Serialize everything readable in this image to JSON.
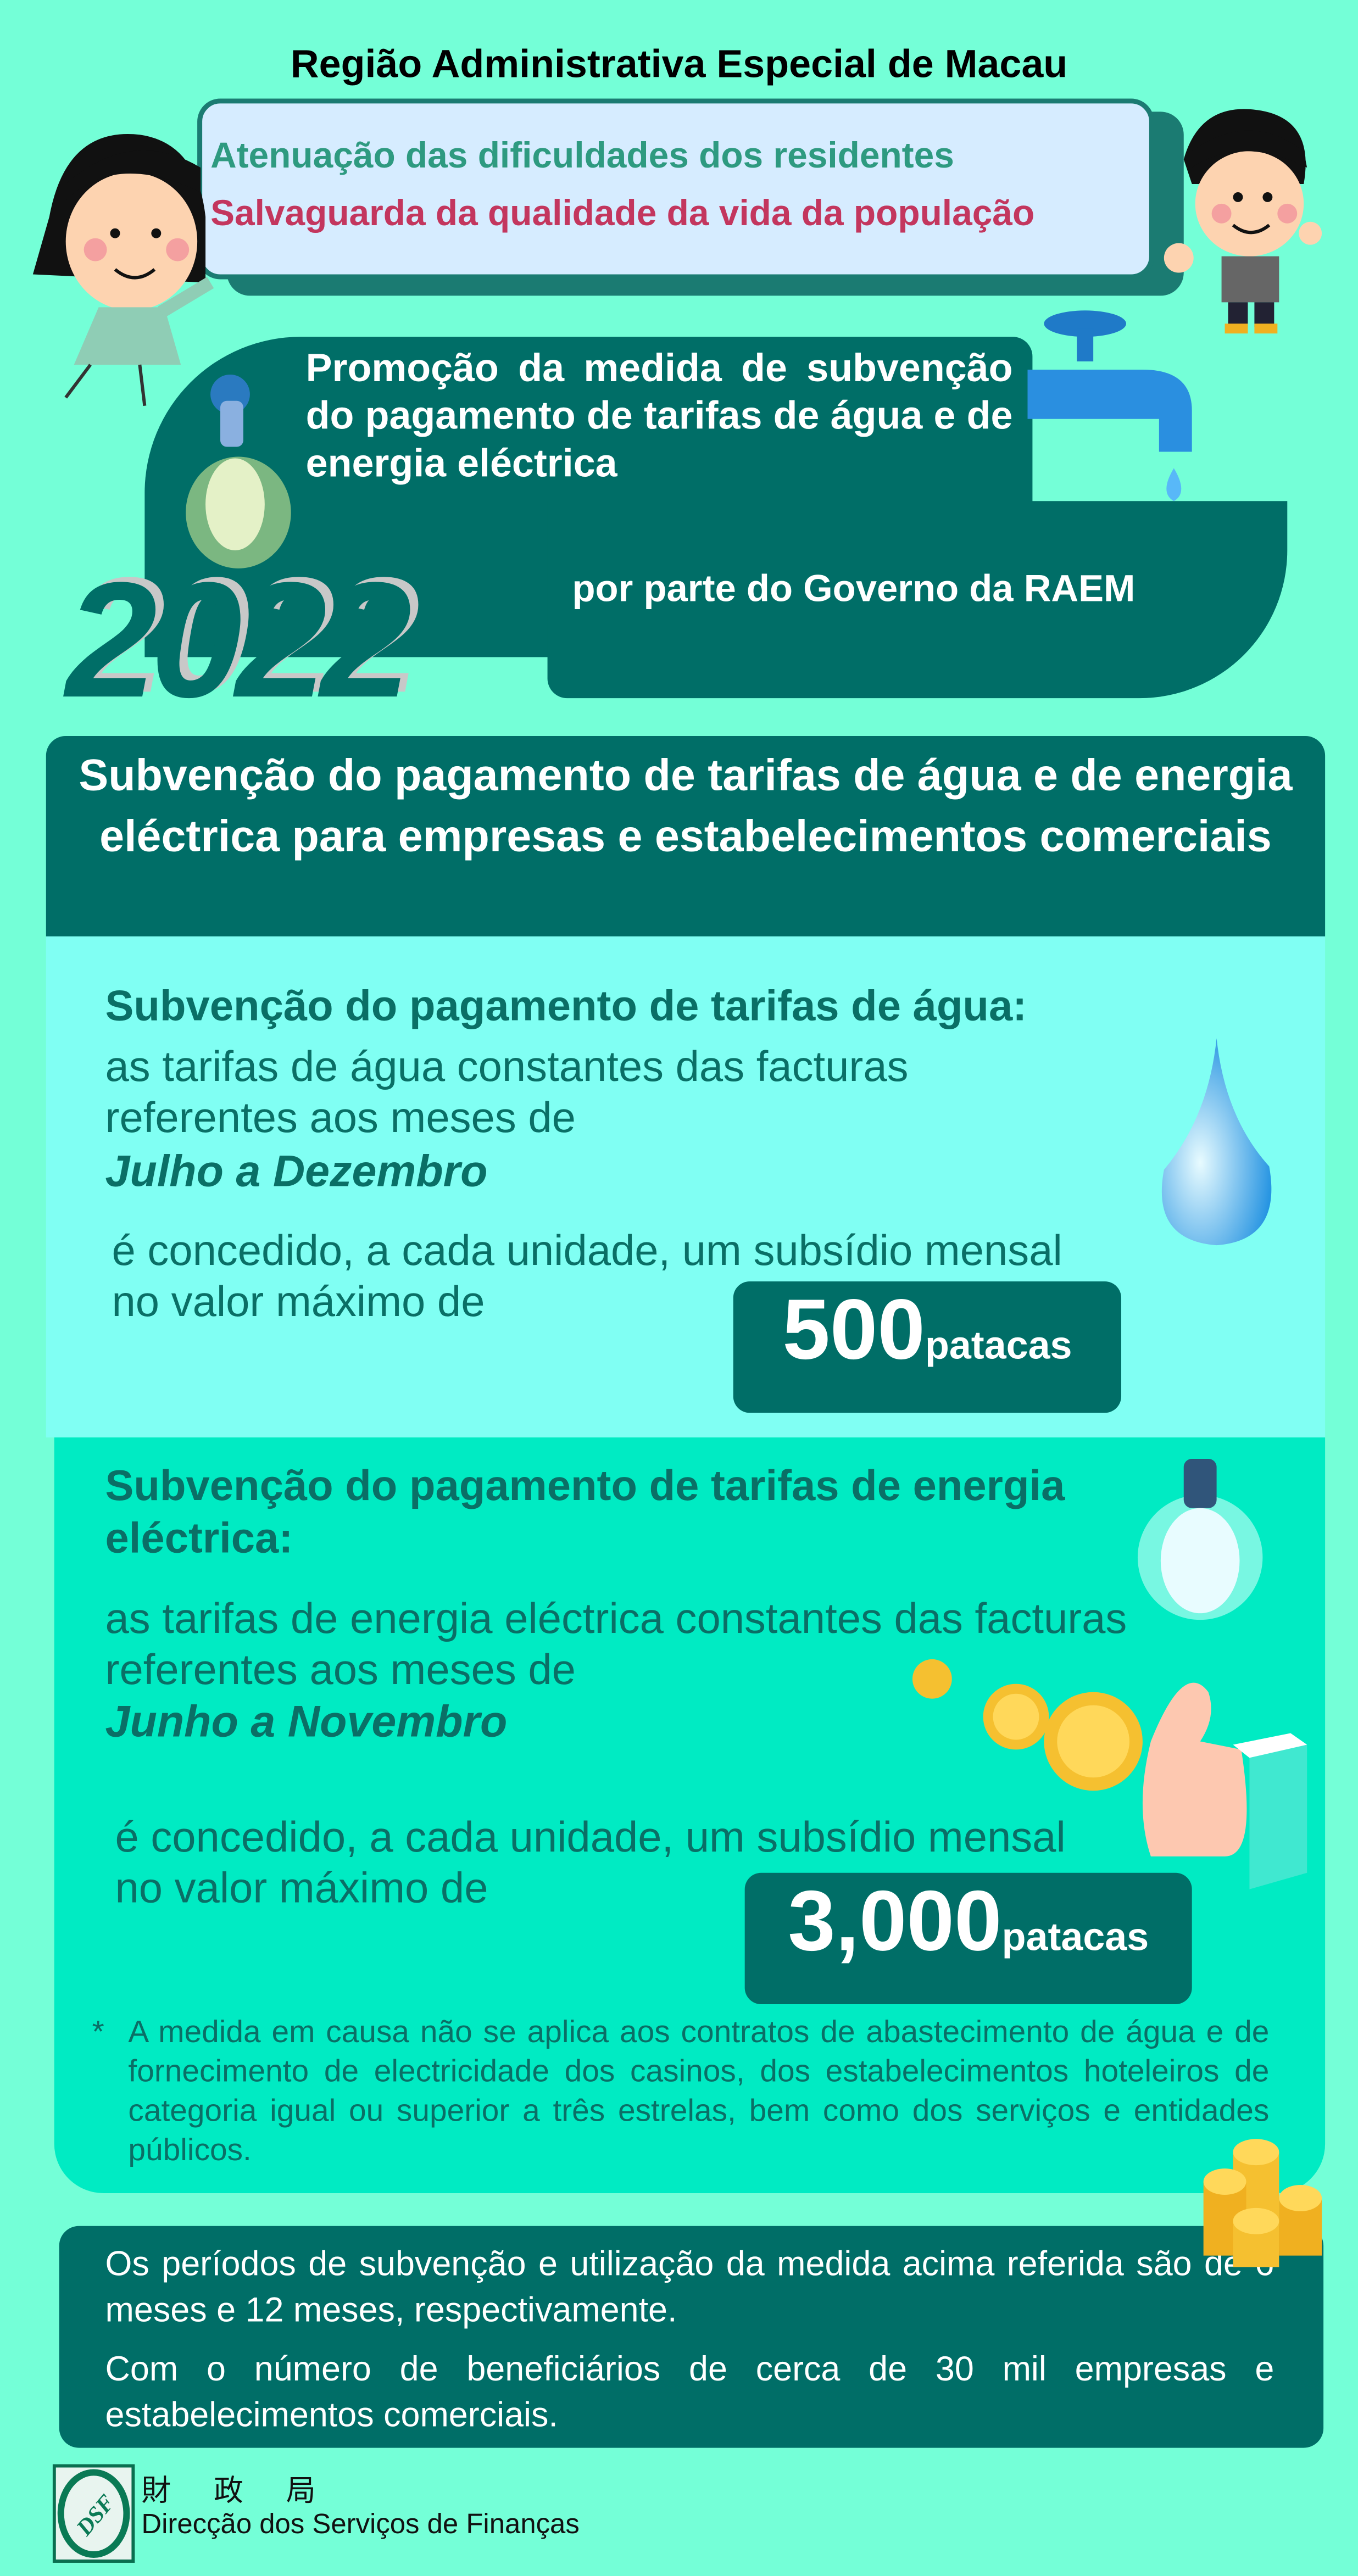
{
  "header": {
    "title": "Região Administrativa Especial de Macau"
  },
  "bubble": {
    "line1": "Atenuação das dificuldades dos residentes",
    "line2": "Salvaguarda da qualidade da vida da população"
  },
  "promo": {
    "text": "Promoção da medida de subvenção do pagamento de tarifas de água e de energia eléctrica",
    "by": "por parte do Governo da RAEM",
    "year": "2022"
  },
  "section_title": "Subvenção do pagamento de tarifas de água e de energia eléctrica para empresas e estabelecimentos comerciais",
  "water": {
    "heading": "Subvenção do pagamento de tarifas de água:",
    "body": "as tarifas de água constantes das facturas referentes aos meses de",
    "period": "Julho a Dezembro",
    "grant": "é concedido, a cada unidade, um subsídio mensal no valor máximo de",
    "amount": "500",
    "unit": "patacas"
  },
  "electricity": {
    "heading": "Subvenção do pagamento de tarifas de energia eléctrica:",
    "body": "as tarifas de energia eléctrica constantes das facturas referentes aos meses de",
    "period": "Junho a Novembro",
    "grant": "é concedido, a cada unidade, um subsídio mensal no valor máximo de",
    "amount": "3,000",
    "unit": "patacas"
  },
  "note": {
    "mark": "*",
    "text": "A medida em causa não se aplica aos contratos de abastecimento de água e de fornecimento de electricidade dos casinos, dos estabelecimentos hoteleiros de categoria igual ou superior a três estrelas, bem como dos serviços e entidades públicos."
  },
  "summary": {
    "p1": "Os períodos de subvenção e utilização da medida acima referida são de 6 meses e 12 meses, respectivamente.",
    "p2": "Com o número de beneficiários de cerca de 30 mil empresas e estabelecimentos comerciais."
  },
  "footer": {
    "logo_text": "DSF",
    "name_cn": "財政局",
    "name_pt": "Direcção dos Serviços de Finanças"
  },
  "colors": {
    "background": "#74ffd7",
    "dark_teal": "#006e67",
    "water_section": "#80fff3",
    "electric_section": "#00ebc3",
    "accent_pink": "#c3365e",
    "accent_green": "#2e9a80"
  }
}
